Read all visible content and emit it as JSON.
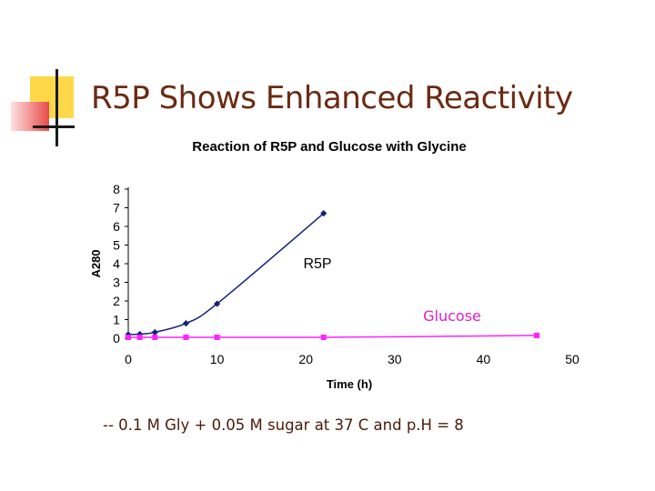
{
  "slide": {
    "title": "R5P Shows Enhanced Reactivity",
    "footnote": "-- 0.1 M Gly + 0.05 M sugar at 37 C and p.H = 8"
  },
  "colors": {
    "title": "#6b2a12",
    "r5p_series": "#14207a",
    "glucose_series": "#ff22ff",
    "glucose_label": "#e01ec8",
    "deco_yellow": "#ffd84a",
    "deco_red": "#e84b4b"
  },
  "chart_data": {
    "type": "line",
    "title": "Reaction of R5P and Glucose with Glycine",
    "xlabel": "Time (h)",
    "ylabel": "A280",
    "xlim": [
      0,
      50
    ],
    "ylim": [
      0,
      8
    ],
    "xticks": [
      0,
      10,
      20,
      30,
      40,
      50
    ],
    "yticks": [
      0,
      1,
      2,
      3,
      4,
      5,
      6,
      7,
      8
    ],
    "grid": false,
    "series": [
      {
        "name": "R5P",
        "marker": "diamond",
        "points": [
          [
            0,
            0.2
          ],
          [
            1.3,
            0.22
          ],
          [
            3,
            0.32
          ],
          [
            6.5,
            0.8
          ],
          [
            10,
            1.85
          ],
          [
            22,
            6.7
          ]
        ]
      },
      {
        "name": "Glucose",
        "marker": "square",
        "points": [
          [
            0,
            0.05
          ],
          [
            1.3,
            0.05
          ],
          [
            3,
            0.05
          ],
          [
            6.5,
            0.05
          ],
          [
            10,
            0.05
          ],
          [
            22,
            0.05
          ],
          [
            46,
            0.15
          ]
        ]
      }
    ]
  }
}
